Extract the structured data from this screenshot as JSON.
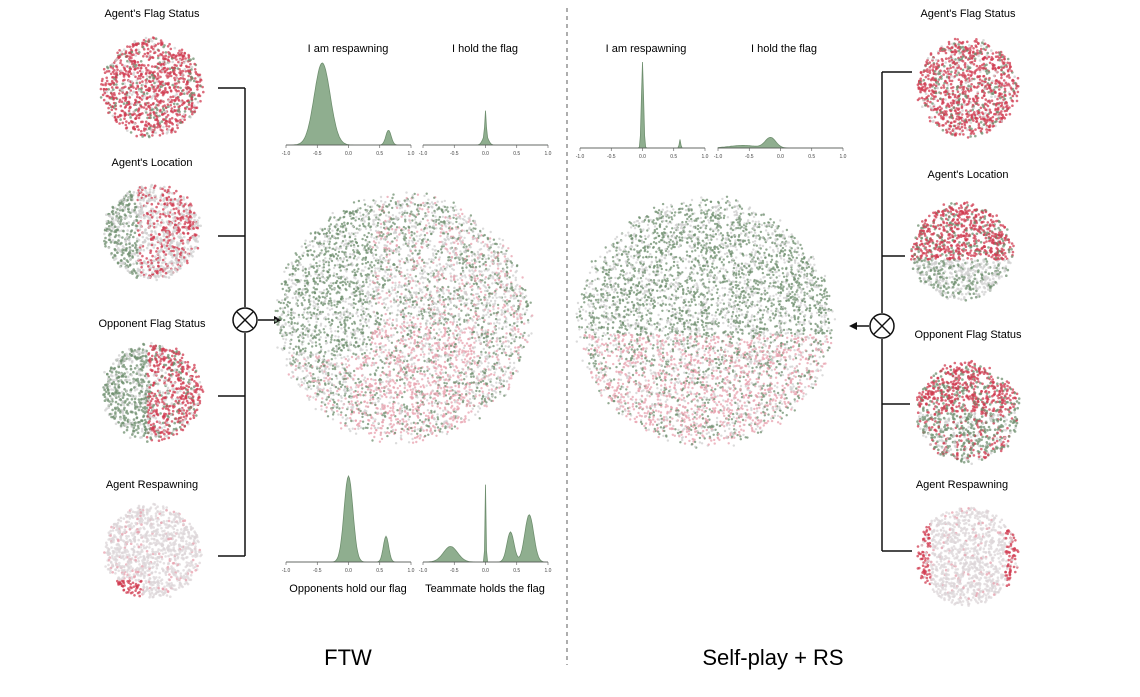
{
  "colors": {
    "green": "#6f8f6f",
    "green_fill": "#8fae8f",
    "red": "#d03b50",
    "pink": "#e8a0ae",
    "grey": "#cfcfcf",
    "line": "#111111",
    "divider": "#777777"
  },
  "panels": {
    "ftw": {
      "label": "FTW",
      "small_maps": [
        {
          "title": "Agent's Flag Status",
          "icon": "red-heavy"
        },
        {
          "title": "Agent's Location",
          "icon": "mixed"
        },
        {
          "title": "Opponent Flag Status",
          "icon": "green-red"
        },
        {
          "title": "Agent Respawning",
          "icon": "grey-light"
        }
      ],
      "hist_top": [
        {
          "title": "I am respawning"
        },
        {
          "title": "I hold the flag"
        }
      ],
      "hist_bottom": [
        {
          "title": "Opponents hold our flag"
        },
        {
          "title": "Teammate holds the flag"
        }
      ],
      "xticks_a": [
        "-1.0",
        "-0.5",
        "0.0",
        "0.5",
        "1.0"
      ],
      "xticks_b": [
        "-1.0",
        "-0.5",
        "0.0",
        "0.5",
        "1.0"
      ]
    },
    "selfplay": {
      "label": "Self-play + RS",
      "small_maps": [
        {
          "title": "Agent's Flag Status",
          "icon": "red-heavy"
        },
        {
          "title": "Agent's Location",
          "icon": "red-top"
        },
        {
          "title": "Opponent Flag Status",
          "icon": "red-green"
        },
        {
          "title": "Agent Respawning",
          "icon": "grey-edge"
        }
      ],
      "hist_top": [
        {
          "title": "I am respawning"
        },
        {
          "title": "I hold the flag"
        }
      ],
      "xticks_a": [
        "-1.0",
        "-0.5",
        "0.0",
        "0.5",
        "1.0"
      ],
      "xticks_b": [
        "-1.0",
        "-0.5",
        "0.0",
        "0.5",
        "1.0"
      ]
    }
  }
}
